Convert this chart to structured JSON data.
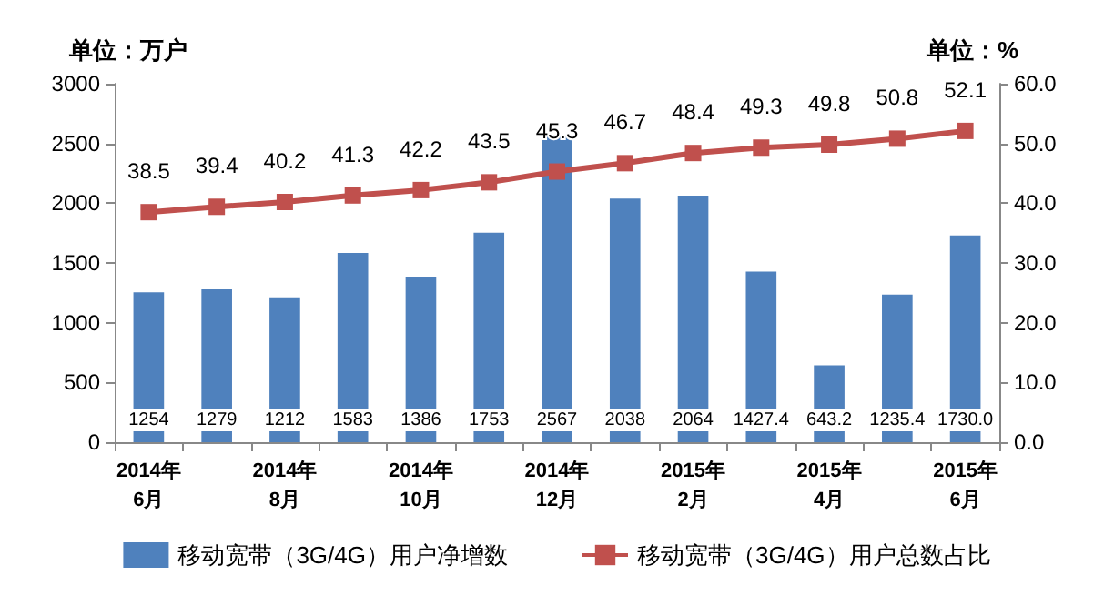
{
  "chart_data": {
    "type": "bar",
    "ylabel": "单位：万户",
    "y2label": "单位：%",
    "categories": [
      "2014年\n6月",
      null,
      "2014年\n8月",
      null,
      "2014年\n10月",
      null,
      "2014年\n12月",
      null,
      "2015年\n2月",
      null,
      "2015年\n4月",
      null,
      "2015年\n6月"
    ],
    "series": [
      {
        "name": "移动宽带（3G/4G）用户净增数",
        "color": "#4f81bd",
        "values": [
          1254,
          1279,
          1212,
          1583,
          1386,
          1753,
          2567,
          2038,
          2064,
          1427.4,
          643.2,
          1235.4,
          1730.0
        ],
        "value_labels": [
          "1254",
          "1279",
          "1212",
          "1583",
          "1386",
          "1753",
          "2567",
          "2038",
          "2064",
          "1427.4",
          "643.2",
          "1235.4",
          "1730.0"
        ]
      },
      {
        "name": "移动宽带（3G/4G）用户总数占比",
        "type": "line",
        "axis": "y2",
        "color": "#c0504d",
        "values": [
          38.5,
          39.4,
          40.2,
          41.3,
          42.2,
          43.5,
          45.3,
          46.7,
          48.4,
          49.3,
          49.8,
          50.8,
          52.1
        ],
        "value_labels": [
          "38.5",
          "39.4",
          "40.2",
          "41.3",
          "42.2",
          "43.5",
          "45.3",
          "46.7",
          "48.4",
          "49.3",
          "49.8",
          "50.8",
          "52.1"
        ]
      }
    ],
    "ylim": [
      0,
      3000
    ],
    "yticks": [
      0,
      500,
      1000,
      1500,
      2000,
      2500,
      3000
    ],
    "y2lim": [
      0,
      60
    ],
    "y2ticks": [
      {
        "value": 0,
        "label": "0.0"
      },
      {
        "value": 10,
        "label": "10.0"
      },
      {
        "value": 20,
        "label": "20.0"
      },
      {
        "value": 30,
        "label": "30.0"
      },
      {
        "value": 40,
        "label": "40.0"
      },
      {
        "value": 50,
        "label": "50.0"
      },
      {
        "value": 60,
        "label": "60.0"
      }
    ],
    "grid": false,
    "legend": "bottom",
    "marker": "square",
    "line_style": "solid"
  }
}
